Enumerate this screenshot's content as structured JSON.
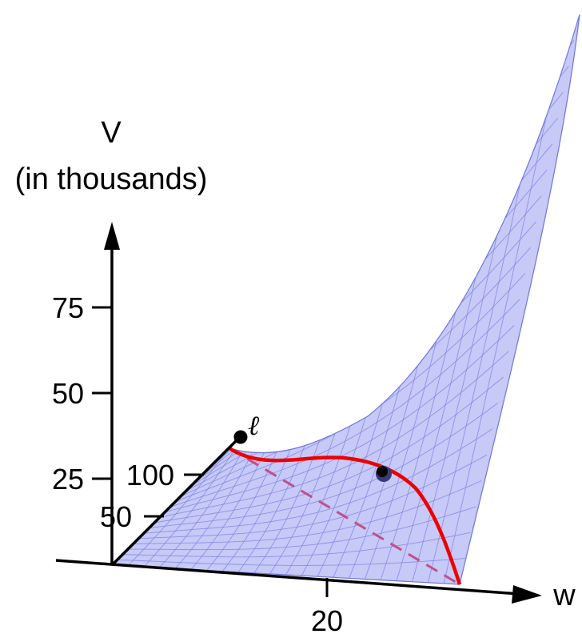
{
  "title": {
    "v_label": "V",
    "v_units": "(in thousands)"
  },
  "axes": {
    "w_label": "w",
    "v_ticks": [
      "75",
      "50",
      "25"
    ],
    "l_ticks": [
      "100",
      "50"
    ],
    "w_ticks": [
      "20"
    ]
  },
  "curve_label": "ℓ",
  "colors": {
    "surface_fill": "#c4c6f7",
    "surface_mesh": "#7a7fe0",
    "curve": "#ee0000",
    "dashed": "#c0508a",
    "axis": "#000000"
  }
}
